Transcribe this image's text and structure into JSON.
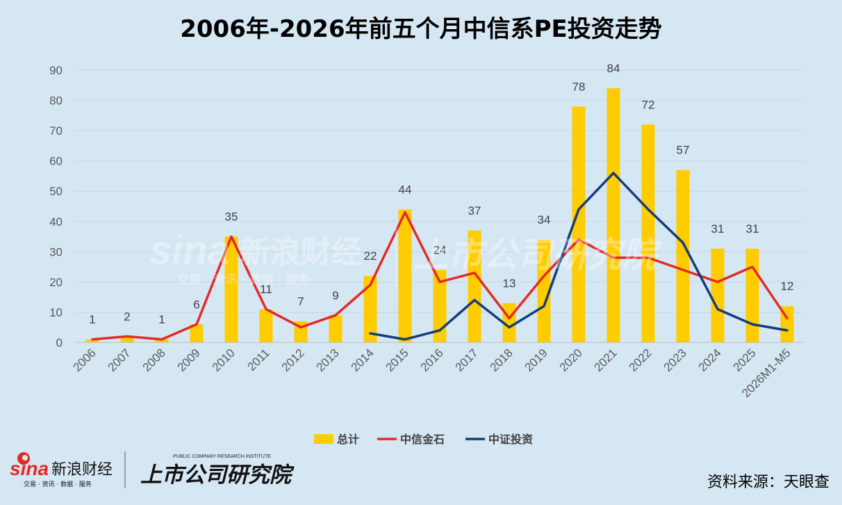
{
  "title": "2006年-2026年前五个月中信系PE投资走势",
  "source": "资料来源：天眼查",
  "logos": {
    "sina_text": "sina",
    "caijing_text": "新浪财经",
    "caijing_sub": "交易 · 资讯 · 数据 · 服务",
    "research_text": "上市公司研究院",
    "research_sub": "PUBLIC COMPANY RESEARCH INSTITUTE"
  },
  "colors": {
    "background": "#d6e7f4",
    "total": "#ffcc00",
    "citic_jinshi": "#e32b26",
    "citic_zhengquan_tz": "#153c7b",
    "grid": "#c6d6e4"
  },
  "chart_data": {
    "type": "bar",
    "title": "2006年-2026年前五个月中信系PE投资走势",
    "categories": [
      "2006",
      "2007",
      "2008",
      "2009",
      "2010",
      "2011",
      "2012",
      "2013",
      "2014",
      "2015",
      "2016",
      "2017",
      "2018",
      "2019",
      "2020",
      "2021",
      "2022",
      "2023",
      "2024",
      "2025",
      "2026M1-M5"
    ],
    "ylim": [
      0,
      90
    ],
    "yticks": [
      0,
      10,
      20,
      30,
      40,
      50,
      60,
      70,
      80,
      90
    ],
    "grid": true,
    "legend_position": "bottom",
    "series": [
      {
        "name": "总计",
        "type": "bar",
        "values": [
          1,
          2,
          1,
          6,
          35,
          11,
          7,
          9,
          22,
          44,
          24,
          37,
          13,
          34,
          78,
          84,
          72,
          57,
          31,
          31,
          12
        ]
      },
      {
        "name": "中信金石",
        "type": "line",
        "values": [
          1,
          2,
          1,
          6,
          35,
          11,
          5,
          9,
          19,
          43,
          20,
          23,
          8,
          22,
          34,
          28,
          28,
          24,
          20,
          25,
          8
        ]
      },
      {
        "name": "中证投资",
        "type": "line",
        "values": [
          null,
          null,
          null,
          null,
          null,
          null,
          null,
          null,
          3,
          1,
          4,
          14,
          5,
          12,
          44,
          56,
          44,
          33,
          11,
          6,
          4
        ]
      }
    ]
  }
}
